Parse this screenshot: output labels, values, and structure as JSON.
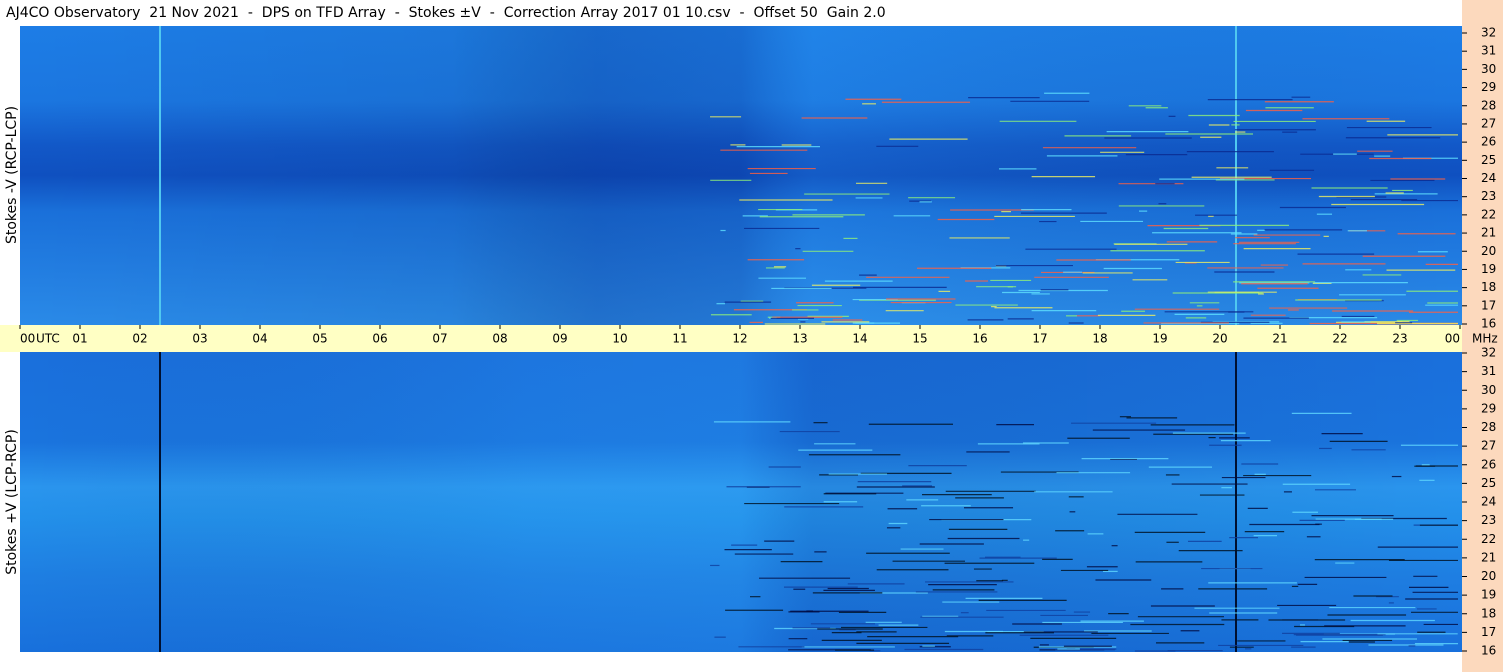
{
  "chart_data": {
    "type": "spectrogram",
    "title": "AJ4CO Observatory  21 Nov 2021  -  DPS on TFD Array  -  Stokes ±V  -  Correction Array 2017 01 10.csv  -  Offset 50  Gain 2.0",
    "panels": [
      {
        "ylabel": "Stokes -V (RCP-LCP)"
      },
      {
        "ylabel": "Stokes +V (LCP-RCP)"
      }
    ],
    "xlabel": "UTC",
    "yunit": "MHz",
    "xlim": [
      0,
      24
    ],
    "xticks": [
      {
        "value": 0,
        "label": "00"
      },
      {
        "value": 1,
        "label": "01"
      },
      {
        "value": 2,
        "label": "02"
      },
      {
        "value": 3,
        "label": "03"
      },
      {
        "value": 4,
        "label": "04"
      },
      {
        "value": 5,
        "label": "05"
      },
      {
        "value": 6,
        "label": "06"
      },
      {
        "value": 7,
        "label": "07"
      },
      {
        "value": 8,
        "label": "08"
      },
      {
        "value": 9,
        "label": "09"
      },
      10,
      11,
      12,
      13,
      14,
      15,
      16,
      17,
      18,
      19,
      20,
      21,
      22,
      23,
      {
        "value": 24,
        "label": "00"
      }
    ],
    "ylim": [
      16,
      32
    ],
    "yticks": [
      16,
      17,
      18,
      19,
      20,
      21,
      22,
      23,
      24,
      25,
      26,
      27,
      28,
      29,
      30,
      31,
      32
    ]
  }
}
